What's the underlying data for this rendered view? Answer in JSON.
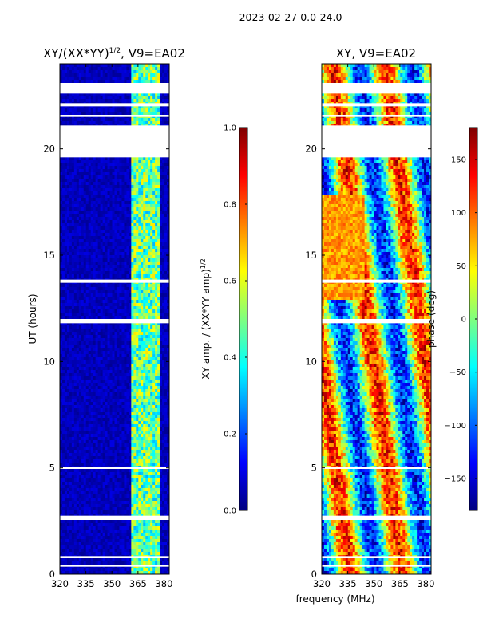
{
  "suptitle": "2023-02-27 0.0-24.0",
  "colors": {
    "jet": [
      "#00007f",
      "#0000ff",
      "#007fff",
      "#00ffff",
      "#7fff7f",
      "#ffff00",
      "#ff7f00",
      "#ff0000",
      "#7f0000"
    ],
    "background": "#ffffff",
    "axis": "#000000"
  },
  "chart_data": [
    {
      "type": "heatmap",
      "title_base": "XY/(XX*YY)",
      "title_sup": "1/2",
      "title_suffix": ", V9=EA02",
      "xlabel": "",
      "ylabel": "UT (hours)",
      "xlim": [
        320,
        383
      ],
      "ylim": [
        0,
        24
      ],
      "xticks": [
        "320",
        "335",
        "350",
        "365",
        "380"
      ],
      "xtick_values": [
        320,
        335,
        350,
        365,
        380
      ],
      "yticks": [
        "0",
        "5",
        "10",
        "15",
        "20"
      ],
      "ytick_values": [
        0,
        5,
        10,
        15,
        20
      ],
      "colorbar": {
        "label_base": "XY amp. / (XX*YY amp)",
        "label_sup": "1/2",
        "range": [
          0.0,
          1.0
        ],
        "ticks": [
          "0.0",
          "0.2",
          "0.4",
          "0.6",
          "0.8",
          "1.0"
        ],
        "tick_values": [
          0.0,
          0.2,
          0.4,
          0.6,
          0.8,
          1.0
        ]
      },
      "data_gaps_hours": [
        [
          0.35,
          0.45
        ],
        [
          0.75,
          0.85
        ],
        [
          2.55,
          2.75
        ],
        [
          4.95,
          5.05
        ],
        [
          11.8,
          12.0
        ],
        [
          13.7,
          13.85
        ],
        [
          19.6,
          21.1
        ],
        [
          21.5,
          21.6
        ],
        [
          22.0,
          22.15
        ],
        [
          22.6,
          23.1
        ]
      ],
      "description_band": "high amplitude band near 362-378 MHz, low elsewhere"
    },
    {
      "type": "heatmap",
      "title_base": "XY, V9=EA02",
      "title_sup": "",
      "title_suffix": "",
      "xlabel": "frequency (MHz)",
      "ylabel": "",
      "xlim": [
        320,
        383
      ],
      "ylim": [
        0,
        24
      ],
      "xticks": [
        "320",
        "335",
        "350",
        "365",
        "380"
      ],
      "xtick_values": [
        320,
        335,
        350,
        365,
        380
      ],
      "yticks": [
        "0",
        "5",
        "10",
        "15",
        "20"
      ],
      "ytick_values": [
        0,
        5,
        10,
        15,
        20
      ],
      "colorbar": {
        "label_base": "phase (deg)",
        "label_sup": "",
        "range": [
          -180,
          180
        ],
        "ticks": [
          "−150",
          "−100",
          "−50",
          "0",
          "50",
          "100",
          "150"
        ],
        "tick_values": [
          -150,
          -100,
          -50,
          0,
          50,
          100,
          150
        ]
      },
      "data_gaps_hours": [
        [
          0.35,
          0.45
        ],
        [
          0.75,
          0.85
        ],
        [
          2.55,
          2.75
        ],
        [
          4.95,
          5.05
        ],
        [
          11.8,
          12.0
        ],
        [
          13.7,
          13.85
        ],
        [
          19.6,
          21.1
        ],
        [
          21.5,
          21.6
        ],
        [
          22.0,
          22.15
        ],
        [
          22.6,
          23.1
        ]
      ]
    }
  ]
}
